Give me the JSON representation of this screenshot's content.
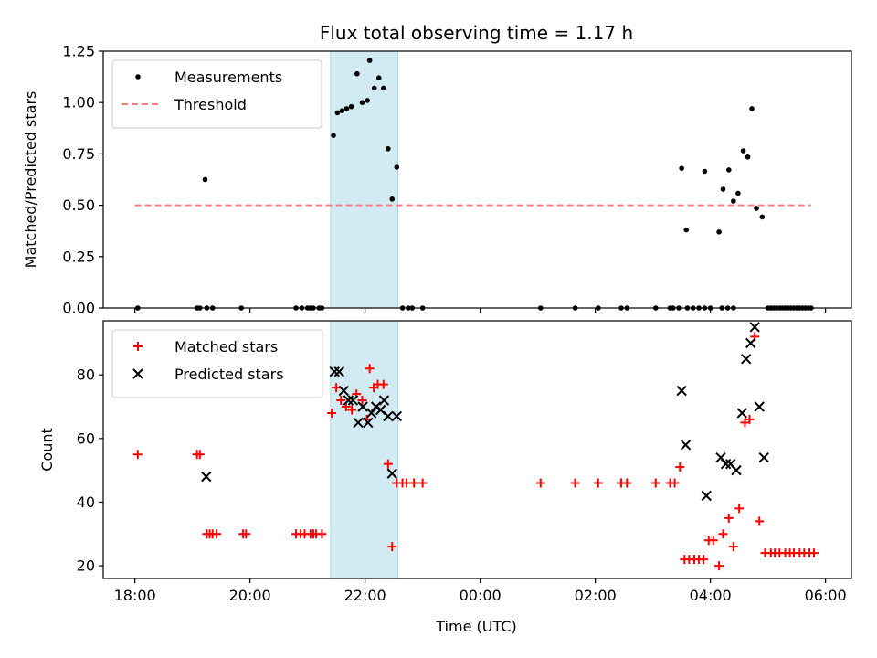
{
  "chart_data": {
    "title": "Flux total observing time = 1.17 h",
    "xlabel": "Time (UTC)",
    "x_unit": "hours after 18:00 UTC",
    "xlim": [
      -0.55,
      12.45
    ],
    "xticks": [
      {
        "value": 0,
        "label": "18:00"
      },
      {
        "value": 2,
        "label": "20:00"
      },
      {
        "value": 4,
        "label": "22:00"
      },
      {
        "value": 6,
        "label": "00:00"
      },
      {
        "value": 8,
        "label": "02:00"
      },
      {
        "value": 10,
        "label": "04:00"
      },
      {
        "value": 12,
        "label": "06:00"
      }
    ],
    "highlight_span": {
      "from": 3.4,
      "to": 4.57,
      "color": "#add8e6"
    },
    "panels": [
      {
        "id": "ratio",
        "type": "scatter",
        "ylabel": "Matched/Predicted stars",
        "ylim": [
          0,
          1.25
        ],
        "yticks": [
          {
            "value": 0,
            "label": "0.00"
          },
          {
            "value": 0.25,
            "label": "0.25"
          },
          {
            "value": 0.5,
            "label": "0.50"
          },
          {
            "value": 0.75,
            "label": "0.75"
          },
          {
            "value": 1.0,
            "label": "1.00"
          },
          {
            "value": 1.25,
            "label": "1.25"
          }
        ],
        "legend": {
          "position": "top-left",
          "entries": [
            {
              "label": "Measurements",
              "marker": "dot",
              "color": "#000000"
            },
            {
              "label": "Threshold",
              "marker": "dashed-line",
              "color": "#ff7f7f"
            }
          ]
        },
        "threshold": {
          "value": 0.5,
          "x_from": 0.0,
          "x_to": 11.75,
          "color": "#ff7f7f"
        },
        "series": [
          {
            "name": "Measurements",
            "marker": "dot",
            "color": "#000000",
            "points": [
              [
                0.05,
                0
              ],
              [
                1.08,
                0
              ],
              [
                1.13,
                0
              ],
              [
                1.25,
                0
              ],
              [
                1.35,
                0
              ],
              [
                1.85,
                0
              ],
              [
                2.8,
                0
              ],
              [
                2.9,
                0
              ],
              [
                3.0,
                0
              ],
              [
                3.05,
                0
              ],
              [
                3.1,
                0
              ],
              [
                3.2,
                0
              ],
              [
                3.25,
                0
              ],
              [
                1.22,
                0.625
              ],
              [
                3.45,
                0.84
              ],
              [
                3.52,
                0.95
              ],
              [
                3.6,
                0.96
              ],
              [
                3.68,
                0.97
              ],
              [
                3.76,
                0.98
              ],
              [
                3.86,
                1.14
              ],
              [
                3.95,
                1.0
              ],
              [
                4.04,
                1.01
              ],
              [
                4.08,
                1.205
              ],
              [
                4.16,
                1.07
              ],
              [
                4.24,
                1.12
              ],
              [
                4.32,
                1.07
              ],
              [
                4.4,
                0.775
              ],
              [
                4.47,
                0.53
              ],
              [
                4.55,
                0.685
              ],
              [
                4.65,
                0
              ],
              [
                4.75,
                0
              ],
              [
                4.82,
                0
              ],
              [
                5.0,
                0
              ],
              [
                7.05,
                0
              ],
              [
                7.65,
                0
              ],
              [
                8.05,
                0
              ],
              [
                8.45,
                0
              ],
              [
                8.55,
                0
              ],
              [
                9.05,
                0
              ],
              [
                9.3,
                0
              ],
              [
                9.35,
                0
              ],
              [
                9.45,
                0
              ],
              [
                9.6,
                0
              ],
              [
                9.7,
                0
              ],
              [
                9.8,
                0
              ],
              [
                9.9,
                0
              ],
              [
                10.0,
                0
              ],
              [
                10.2,
                0
              ],
              [
                10.3,
                0
              ],
              [
                10.4,
                0
              ],
              [
                9.5,
                0.68
              ],
              [
                9.58,
                0.38
              ],
              [
                9.9,
                0.665
              ],
              [
                10.15,
                0.37
              ],
              [
                10.22,
                0.578
              ],
              [
                10.32,
                0.672
              ],
              [
                10.4,
                0.52
              ],
              [
                10.48,
                0.558
              ],
              [
                10.57,
                0.765
              ],
              [
                10.65,
                0.735
              ],
              [
                10.72,
                0.97
              ],
              [
                10.8,
                0.485
              ],
              [
                10.9,
                0.443
              ],
              [
                11.0,
                0
              ],
              [
                11.05,
                0
              ],
              [
                11.1,
                0
              ],
              [
                11.15,
                0
              ],
              [
                11.2,
                0
              ],
              [
                11.25,
                0
              ],
              [
                11.3,
                0
              ],
              [
                11.35,
                0
              ],
              [
                11.4,
                0
              ],
              [
                11.45,
                0
              ],
              [
                11.5,
                0
              ],
              [
                11.55,
                0
              ],
              [
                11.6,
                0
              ],
              [
                11.65,
                0
              ],
              [
                11.7,
                0
              ],
              [
                11.75,
                0
              ]
            ]
          }
        ]
      },
      {
        "id": "counts",
        "type": "scatter",
        "ylabel": "Count",
        "ylim": [
          16,
          97
        ],
        "yticks": [
          {
            "value": 20,
            "label": "20"
          },
          {
            "value": 40,
            "label": "40"
          },
          {
            "value": 60,
            "label": "60"
          },
          {
            "value": 80,
            "label": "80"
          }
        ],
        "legend": {
          "position": "top-left",
          "entries": [
            {
              "label": "Matched stars",
              "marker": "plus",
              "color": "#ff0000"
            },
            {
              "label": "Predicted stars",
              "marker": "x",
              "color": "#000000"
            }
          ]
        },
        "series": [
          {
            "name": "Matched stars",
            "marker": "plus",
            "color": "#ff0000",
            "points": [
              [
                0.05,
                55
              ],
              [
                1.08,
                55
              ],
              [
                1.13,
                55
              ],
              [
                1.25,
                30
              ],
              [
                1.3,
                30
              ],
              [
                1.35,
                30
              ],
              [
                1.42,
                30
              ],
              [
                1.88,
                30
              ],
              [
                1.93,
                30
              ],
              [
                2.8,
                30
              ],
              [
                2.88,
                30
              ],
              [
                2.95,
                30
              ],
              [
                3.05,
                30
              ],
              [
                3.1,
                30
              ],
              [
                3.15,
                30
              ],
              [
                3.25,
                30
              ],
              [
                3.42,
                68
              ],
              [
                3.5,
                76
              ],
              [
                3.58,
                72
              ],
              [
                3.67,
                70
              ],
              [
                3.77,
                69
              ],
              [
                3.85,
                74
              ],
              [
                3.95,
                72
              ],
              [
                4.03,
                66
              ],
              [
                4.08,
                82
              ],
              [
                4.15,
                76
              ],
              [
                4.22,
                77
              ],
              [
                4.32,
                77
              ],
              [
                4.4,
                52
              ],
              [
                4.47,
                26
              ],
              [
                4.55,
                46
              ],
              [
                4.65,
                46
              ],
              [
                4.72,
                46
              ],
              [
                4.85,
                46
              ],
              [
                5.0,
                46
              ],
              [
                7.05,
                46
              ],
              [
                7.65,
                46
              ],
              [
                8.05,
                46
              ],
              [
                8.45,
                46
              ],
              [
                8.55,
                46
              ],
              [
                9.05,
                46
              ],
              [
                9.3,
                46
              ],
              [
                9.38,
                46
              ],
              [
                9.47,
                51
              ],
              [
                9.55,
                22
              ],
              [
                9.63,
                22
              ],
              [
                9.72,
                22
              ],
              [
                9.8,
                22
              ],
              [
                9.88,
                22
              ],
              [
                9.97,
                28
              ],
              [
                10.05,
                28
              ],
              [
                10.15,
                20
              ],
              [
                10.22,
                30
              ],
              [
                10.32,
                35
              ],
              [
                10.4,
                26
              ],
              [
                10.5,
                38
              ],
              [
                10.6,
                65
              ],
              [
                10.68,
                66
              ],
              [
                10.77,
                92
              ],
              [
                10.85,
                34
              ],
              [
                10.95,
                24
              ],
              [
                11.05,
                24
              ],
              [
                11.12,
                24
              ],
              [
                11.2,
                24
              ],
              [
                11.3,
                24
              ],
              [
                11.38,
                24
              ],
              [
                11.45,
                24
              ],
              [
                11.55,
                24
              ],
              [
                11.63,
                24
              ],
              [
                11.72,
                24
              ],
              [
                11.8,
                24
              ]
            ]
          },
          {
            "name": "Predicted stars",
            "marker": "x",
            "color": "#000000",
            "points": [
              [
                1.24,
                48
              ],
              [
                3.47,
                81
              ],
              [
                3.55,
                81
              ],
              [
                3.63,
                75
              ],
              [
                3.71,
                72
              ],
              [
                3.79,
                72
              ],
              [
                3.88,
                65
              ],
              [
                3.96,
                70
              ],
              [
                4.05,
                65
              ],
              [
                4.11,
                68
              ],
              [
                4.19,
                70
              ],
              [
                4.27,
                69
              ],
              [
                4.33,
                72
              ],
              [
                4.4,
                67
              ],
              [
                4.47,
                49
              ],
              [
                4.55,
                67
              ],
              [
                9.5,
                75
              ],
              [
                9.57,
                58
              ],
              [
                9.93,
                42
              ],
              [
                10.18,
                54
              ],
              [
                10.27,
                52
              ],
              [
                10.35,
                52
              ],
              [
                10.45,
                50
              ],
              [
                10.55,
                68
              ],
              [
                10.62,
                85
              ],
              [
                10.7,
                90
              ],
              [
                10.77,
                95
              ],
              [
                10.85,
                70
              ],
              [
                10.93,
                54
              ]
            ]
          }
        ]
      }
    ]
  }
}
